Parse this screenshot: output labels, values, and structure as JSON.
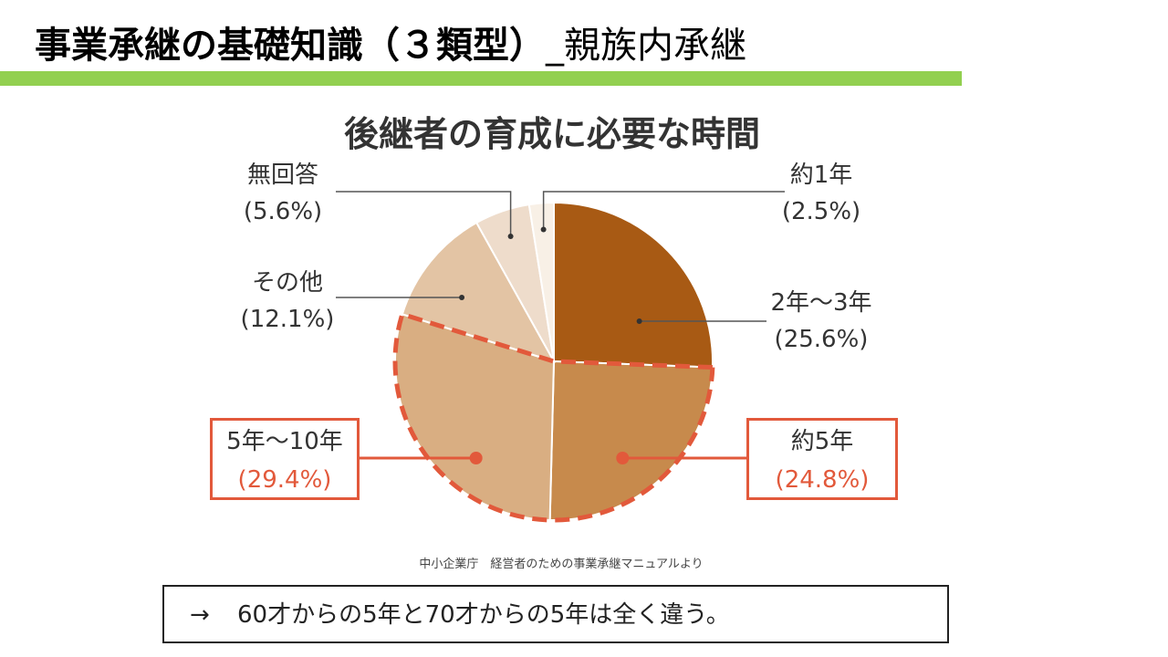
{
  "slide": {
    "title_main": "事業承継の基礎知識（３類型）",
    "title_sub": "_親族内承継"
  },
  "colors": {
    "accent_bar": "#92d050",
    "highlight": "#e2593b"
  },
  "chart_data": {
    "type": "pie",
    "title": "後継者の育成に必要な時間",
    "slices": [
      {
        "label": "2年〜3年",
        "value": 25.6,
        "pct_text": "(25.6%)",
        "color": "#a85a14"
      },
      {
        "label": "約5年",
        "value": 24.8,
        "pct_text": "(24.8%)",
        "color": "#c78a4c",
        "highlighted": true
      },
      {
        "label": "5年〜10年",
        "value": 29.4,
        "pct_text": "(29.4%)",
        "color": "#d9ae82",
        "highlighted": true
      },
      {
        "label": "その他",
        "value": 12.1,
        "pct_text": "(12.1%)",
        "color": "#e3c4a4"
      },
      {
        "label": "無回答",
        "value": 5.6,
        "pct_text": "(5.6%)",
        "color": "#eedccb"
      },
      {
        "label": "約1年",
        "value": 2.5,
        "pct_text": "(2.5%)",
        "color": "#f8f0e6"
      }
    ],
    "start": "12 o'clock",
    "direction": "clockwise"
  },
  "source": "中小企業庁　経営者のための事業承継マニュアルより",
  "note": {
    "arrow": "→",
    "text": "60才からの5年と70才からの5年は全く違う。"
  }
}
